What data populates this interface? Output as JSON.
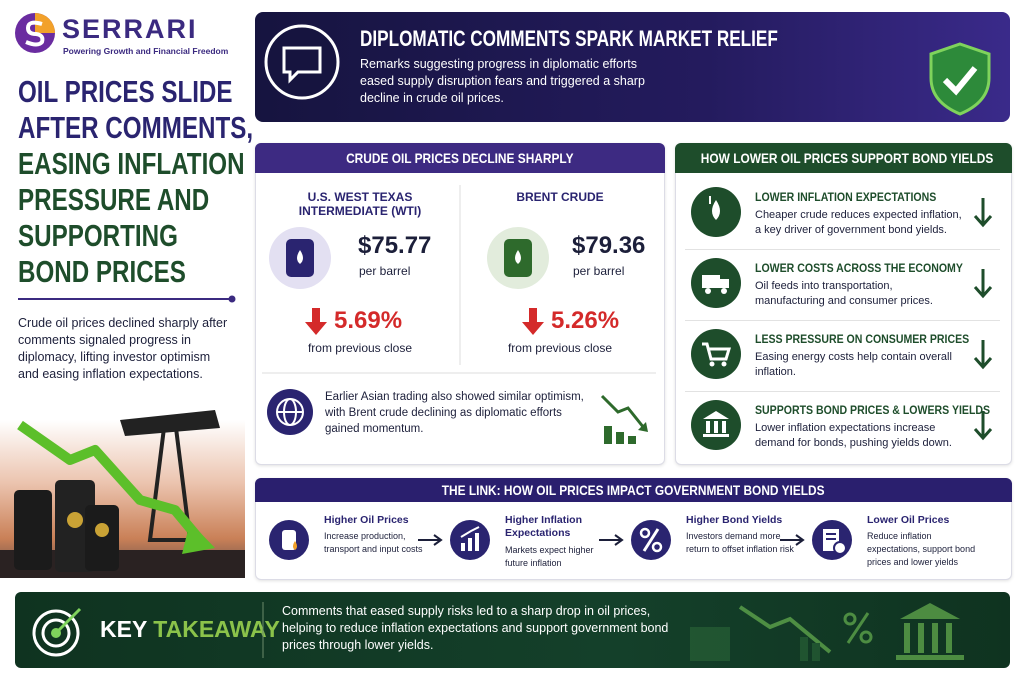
{
  "brand": {
    "name": "SERRARI",
    "tagline": "Powering Growth and Financial Freedom"
  },
  "headline": {
    "lines": [
      "OIL PRICES SLIDE",
      "AFTER COMMENTS,",
      "EASING INFLATION",
      "PRESSURE AND",
      "SUPPORTING",
      "BOND PRICES"
    ],
    "summary": "Crude oil prices declined sharply after comments signaled progress in diplomacy, lifting investor optimism and easing inflation expectations."
  },
  "banner": {
    "title": "DIPLOMATIC COMMENTS SPARK MARKET RELIEF",
    "text": "Remarks suggesting progress in diplomatic efforts eased supply disruption fears and triggered a sharp decline in crude oil prices."
  },
  "crude": {
    "title": "CRUDE OIL PRICES DECLINE SHARPLY",
    "items": [
      {
        "name": "U.S. WEST TEXAS INTERMEDIATE (WTI)",
        "price": "$75.77",
        "unit": "per barrel",
        "change": "5.69%",
        "change_note": "from previous close"
      },
      {
        "name": "BRENT CRUDE",
        "price": "$79.36",
        "unit": "per barrel",
        "change": "5.26%",
        "change_note": "from previous close"
      }
    ],
    "note": "Earlier Asian trading also showed similar optimism, with Brent crude declining as diplomatic efforts gained momentum."
  },
  "bond": {
    "title": "HOW LOWER OIL PRICES SUPPORT BOND YIELDS",
    "items": [
      {
        "title": "LOWER INFLATION EXPECTATIONS",
        "text": "Cheaper crude reduces expected inflation, a key driver of government bond yields."
      },
      {
        "title": "LOWER COSTS ACROSS THE ECONOMY",
        "text": "Oil feeds into transportation, manufacturing and consumer prices."
      },
      {
        "title": "LESS PRESSURE ON CONSUMER PRICES",
        "text": "Easing energy costs help contain overall inflation."
      },
      {
        "title": "SUPPORTS BOND PRICES & LOWERS YIELDS",
        "text": "Lower inflation expectations increase demand for bonds, pushing yields down."
      }
    ]
  },
  "link": {
    "title": "THE LINK: HOW OIL PRICES IMPACT GOVERNMENT BOND YIELDS",
    "steps": [
      {
        "title": "Higher Oil Prices",
        "text": "Increase production, transport and input costs"
      },
      {
        "title": "Higher Inflation Expectations",
        "text": "Markets expect higher future inflation"
      },
      {
        "title": "Higher Bond Yields",
        "text": "Investors demand more return to offset inflation risk"
      },
      {
        "title": "Lower Oil Prices",
        "text": "Reduce inflation expectations, support bond prices and lower yields"
      }
    ]
  },
  "takeaway": {
    "label_1": "KEY",
    "label_2": "TAKEAWAY",
    "text": "Comments that eased supply risks led to a sharp drop in oil prices, helping to reduce inflation expectations and support government bond prices through lower yields."
  }
}
